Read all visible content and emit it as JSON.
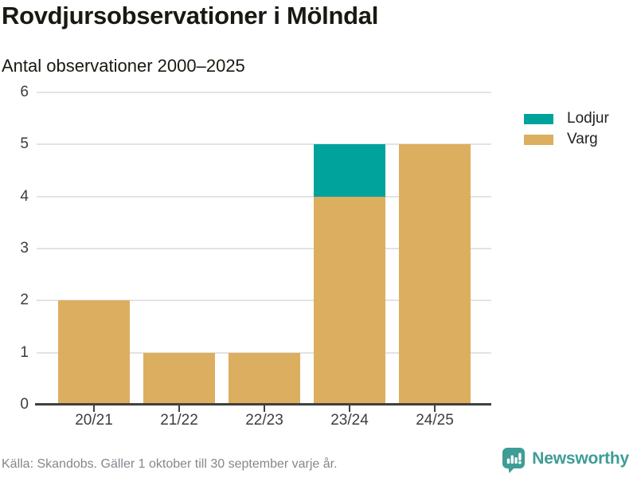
{
  "header": {
    "title": "Rovdjursobservationer i Mölndal",
    "subtitle": "Antal observationer 2000–2025"
  },
  "chart_data": {
    "type": "bar",
    "stacked": true,
    "title": "Rovdjursobservationer i Mölndal",
    "subtitle": "Antal observationer 2000–2025",
    "categories": [
      "20/21",
      "21/22",
      "22/23",
      "23/24",
      "24/25"
    ],
    "series": [
      {
        "name": "Varg",
        "color": "#DCAE5F",
        "values": [
          2,
          1,
          1,
          4,
          5
        ]
      },
      {
        "name": "Lodjur",
        "color": "#00A39B",
        "values": [
          0,
          0,
          0,
          1,
          0
        ]
      }
    ],
    "totals": [
      2,
      1,
      1,
      5,
      5
    ],
    "xlabel": "",
    "ylabel": "",
    "ylim": [
      0,
      6
    ],
    "yticks": [
      0,
      1,
      2,
      3,
      4,
      5,
      6
    ],
    "grid": true,
    "legend": {
      "position": "top-right",
      "entries": [
        {
          "label": "Lodjur",
          "color": "#00A39B"
        },
        {
          "label": "Varg",
          "color": "#DCAE5F"
        }
      ]
    }
  },
  "footer": {
    "source": "Källa: Skandobs. Gäller 1 oktober till 30 september varje år.",
    "brand": "Newsworthy"
  },
  "colors": {
    "accent_teal": "#00A39B",
    "accent_ochre": "#DCAE5F",
    "brand_teal": "#3E9D96",
    "axis": "#404040",
    "gridline": "#E3E3E3",
    "text_dark": "#191911",
    "text_muted": "#83878E"
  }
}
